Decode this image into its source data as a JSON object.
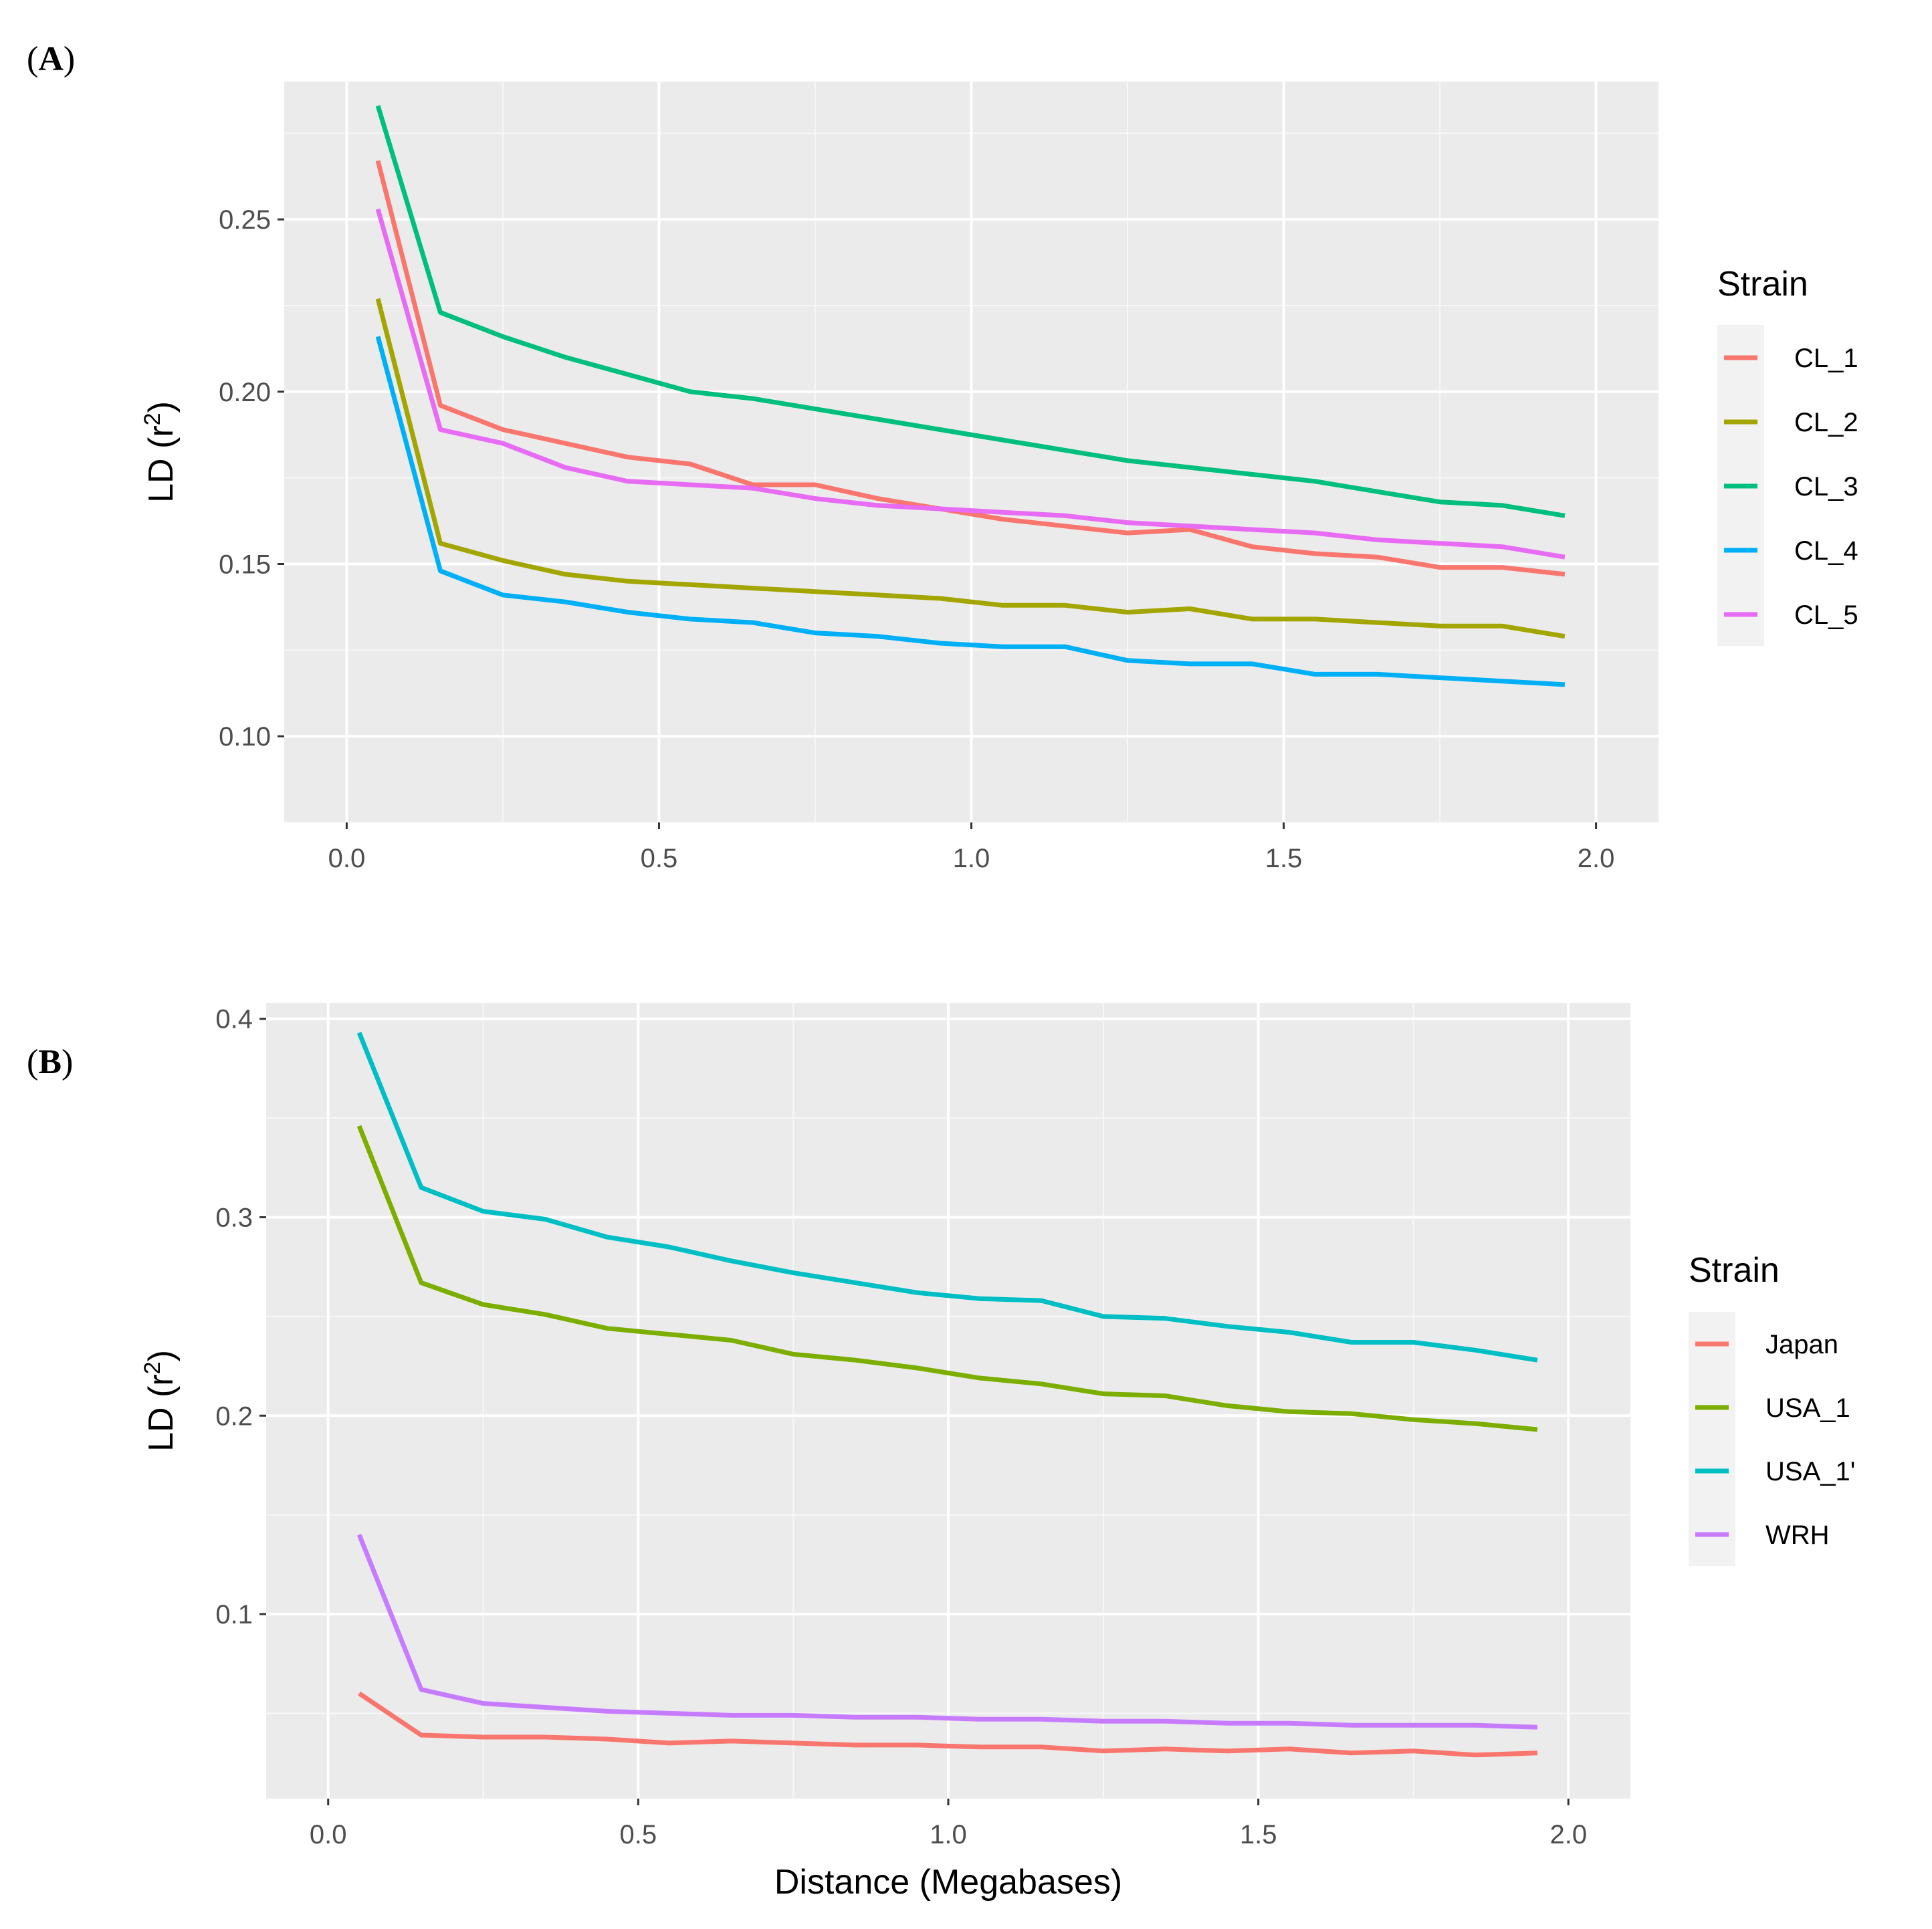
{
  "figure_label": "",
  "chart_data": [
    {
      "panel": "A",
      "type": "line",
      "title": "",
      "xlabel": "",
      "ylabel": "LD (r",
      "ylabel_sup": "2",
      "ylabel_close": ")",
      "xlim": [
        -0.1,
        2.1
      ],
      "ylim": [
        0.075,
        0.29
      ],
      "xticks": [
        0.0,
        0.5,
        1.0,
        1.5,
        2.0
      ],
      "xtick_labels": [
        "0.0",
        "0.5",
        "1.0",
        "1.5",
        "2.0"
      ],
      "yticks": [
        0.1,
        0.15,
        0.2,
        0.25
      ],
      "ytick_labels": [
        "0.10",
        "0.15",
        "0.20",
        "0.25"
      ],
      "grid": true,
      "legend_title": "Strain",
      "legend_position": "right",
      "x": [
        0.05,
        0.15,
        0.25,
        0.35,
        0.45,
        0.55,
        0.65,
        0.75,
        0.85,
        0.95,
        1.05,
        1.15,
        1.25,
        1.35,
        1.45,
        1.55,
        1.65,
        1.75,
        1.85,
        1.95
      ],
      "series": [
        {
          "name": "CL_1",
          "color": "#F8766D",
          "values": [
            0.267,
            0.196,
            0.189,
            0.185,
            0.181,
            0.179,
            0.173,
            0.173,
            0.169,
            0.166,
            0.163,
            0.161,
            0.159,
            0.16,
            0.155,
            0.153,
            0.152,
            0.149,
            0.149,
            0.147
          ]
        },
        {
          "name": "CL_2",
          "color": "#A3A500",
          "values": [
            0.227,
            0.156,
            0.151,
            0.147,
            0.145,
            0.144,
            0.143,
            0.142,
            0.141,
            0.14,
            0.138,
            0.138,
            0.136,
            0.137,
            0.134,
            0.134,
            0.133,
            0.132,
            0.132,
            0.129
          ]
        },
        {
          "name": "CL_3",
          "color": "#00BF7D",
          "values": [
            0.283,
            0.223,
            0.216,
            0.21,
            0.205,
            0.2,
            0.198,
            0.195,
            0.192,
            0.189,
            0.186,
            0.183,
            0.18,
            0.178,
            0.176,
            0.174,
            0.171,
            0.168,
            0.167,
            0.164
          ]
        },
        {
          "name": "CL_4",
          "color": "#00B0F6",
          "values": [
            0.216,
            0.148,
            0.141,
            0.139,
            0.136,
            0.134,
            0.133,
            0.13,
            0.129,
            0.127,
            0.126,
            0.126,
            0.122,
            0.121,
            0.121,
            0.118,
            0.118,
            0.117,
            0.116,
            0.115
          ]
        },
        {
          "name": "CL_5",
          "color": "#E76BF3",
          "values": [
            0.253,
            0.189,
            0.185,
            0.178,
            0.174,
            0.173,
            0.172,
            0.169,
            0.167,
            0.166,
            0.165,
            0.164,
            0.162,
            0.161,
            0.16,
            0.159,
            0.157,
            0.156,
            0.155,
            0.152
          ]
        }
      ]
    },
    {
      "panel": "B",
      "type": "line",
      "title": "",
      "xlabel": "Distance (Megabases)",
      "ylabel": "LD (r",
      "ylabel_sup": "2",
      "ylabel_close": ")",
      "xlim": [
        -0.1,
        2.1
      ],
      "ylim": [
        0.007,
        0.408
      ],
      "xticks": [
        0.0,
        0.5,
        1.0,
        1.5,
        2.0
      ],
      "xtick_labels": [
        "0.0",
        "0.5",
        "1.0",
        "1.5",
        "2.0"
      ],
      "yticks": [
        0.1,
        0.2,
        0.3,
        0.4
      ],
      "ytick_labels": [
        "0.1",
        "0.2",
        "0.3",
        "0.4"
      ],
      "grid": true,
      "legend_title": "Strain",
      "legend_position": "right",
      "x": [
        0.05,
        0.15,
        0.25,
        0.35,
        0.45,
        0.55,
        0.65,
        0.75,
        0.85,
        0.95,
        1.05,
        1.15,
        1.25,
        1.35,
        1.45,
        1.55,
        1.65,
        1.75,
        1.85,
        1.95
      ],
      "series": [
        {
          "name": "Japan",
          "color": "#F8766D",
          "values": [
            0.06,
            0.039,
            0.038,
            0.038,
            0.037,
            0.035,
            0.036,
            0.035,
            0.034,
            0.034,
            0.033,
            0.033,
            0.031,
            0.032,
            0.031,
            0.032,
            0.03,
            0.031,
            0.029,
            0.03
          ]
        },
        {
          "name": "USA_1",
          "color": "#7CAE00",
          "values": [
            0.346,
            0.267,
            0.256,
            0.251,
            0.244,
            0.241,
            0.238,
            0.231,
            0.228,
            0.224,
            0.219,
            0.216,
            0.211,
            0.21,
            0.205,
            0.202,
            0.201,
            0.198,
            0.196,
            0.193
          ]
        },
        {
          "name": "USA_1'",
          "color": "#00BFC4",
          "values": [
            0.393,
            0.315,
            0.303,
            0.299,
            0.29,
            0.285,
            0.278,
            0.272,
            0.267,
            0.262,
            0.259,
            0.258,
            0.25,
            0.249,
            0.245,
            0.242,
            0.237,
            0.237,
            0.233,
            0.228
          ]
        },
        {
          "name": "WRH",
          "color": "#C77CFF",
          "values": [
            0.14,
            0.062,
            0.055,
            0.053,
            0.051,
            0.05,
            0.049,
            0.049,
            0.048,
            0.048,
            0.047,
            0.047,
            0.046,
            0.046,
            0.045,
            0.045,
            0.044,
            0.044,
            0.044,
            0.043
          ]
        }
      ]
    }
  ],
  "panel_labels": {
    "A": {
      "open": "(",
      "letter": "A",
      "close": ")"
    },
    "B": {
      "open": "(",
      "letter": "B",
      "close": ")"
    }
  },
  "colors": {
    "panel_background": "#EBEBEB",
    "grid": "#FFFFFF"
  }
}
